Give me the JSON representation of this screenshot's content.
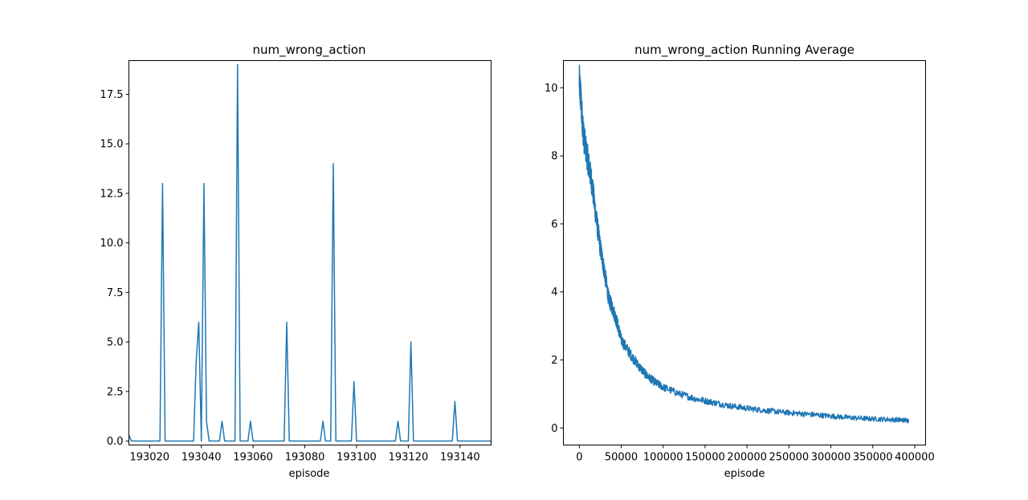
{
  "chart_data": [
    {
      "type": "line",
      "title": "num_wrong_action",
      "xlabel": "episode",
      "ylabel": "",
      "xlim": [
        193012,
        193152
      ],
      "ylim": [
        -0.2,
        19.2
      ],
      "xticks": [
        193020,
        193040,
        193060,
        193080,
        193100,
        193120,
        193140
      ],
      "xtick_labels": [
        "193020",
        "193040",
        "193060",
        "193080",
        "193100",
        "193120",
        "193140"
      ],
      "yticks": [
        0,
        2.5,
        5,
        7.5,
        10,
        12.5,
        15,
        17.5
      ],
      "ytick_labels": [
        "0.0",
        "2.5",
        "5.0",
        "7.5",
        "10.0",
        "12.5",
        "15.0",
        "17.5"
      ],
      "grid": false,
      "color": "#1f77b4",
      "x": [
        193012,
        193013,
        193024,
        193025,
        193026,
        193037,
        193038,
        193039,
        193040,
        193041,
        193042,
        193043,
        193047,
        193048,
        193049,
        193053,
        193054,
        193055,
        193058,
        193059,
        193060,
        193072,
        193073,
        193074,
        193086,
        193087,
        193088,
        193090,
        193091,
        193092,
        193098,
        193099,
        193100,
        193115,
        193116,
        193117,
        193120,
        193121,
        193122,
        193137,
        193138,
        193139,
        193152
      ],
      "y": [
        0.3,
        0,
        0,
        13,
        0,
        0,
        4,
        6,
        0,
        13,
        1,
        0,
        0,
        1,
        0,
        0,
        19,
        0,
        0,
        1,
        0,
        0,
        6,
        0,
        0,
        1,
        0,
        0,
        14,
        0,
        0,
        3,
        0,
        0,
        1,
        0,
        0,
        5,
        0,
        0,
        2,
        0,
        0
      ]
    },
    {
      "type": "line",
      "title": "num_wrong_action Running Average",
      "xlabel": "episode",
      "ylabel": "",
      "xlim": [
        -19000,
        413000
      ],
      "ylim": [
        -0.5,
        10.8
      ],
      "xticks": [
        0,
        50000,
        100000,
        150000,
        200000,
        250000,
        300000,
        350000,
        400000
      ],
      "xtick_labels": [
        "0",
        "50000",
        "100000",
        "150000",
        "200000",
        "250000",
        "300000",
        "350000",
        "400000"
      ],
      "yticks": [
        0,
        2,
        4,
        6,
        8,
        10
      ],
      "ytick_labels": [
        "0",
        "2",
        "4",
        "6",
        "8",
        "10"
      ],
      "grid": false,
      "color": "#1f77b4",
      "x": [
        0,
        2000,
        5000,
        10000,
        15000,
        20000,
        25000,
        30000,
        35000,
        40000,
        45000,
        50000,
        60000,
        70000,
        80000,
        90000,
        100000,
        120000,
        140000,
        160000,
        180000,
        200000,
        220000,
        240000,
        260000,
        280000,
        300000,
        320000,
        340000,
        360000,
        380000,
        393000
      ],
      "y": [
        10.2,
        9.6,
        8.6,
        7.9,
        7.2,
        6.2,
        5.3,
        4.6,
        3.8,
        3.5,
        3.1,
        2.6,
        2.2,
        1.85,
        1.55,
        1.35,
        1.2,
        1.0,
        0.85,
        0.75,
        0.65,
        0.58,
        0.52,
        0.47,
        0.43,
        0.39,
        0.35,
        0.31,
        0.28,
        0.26,
        0.24,
        0.22
      ]
    }
  ]
}
